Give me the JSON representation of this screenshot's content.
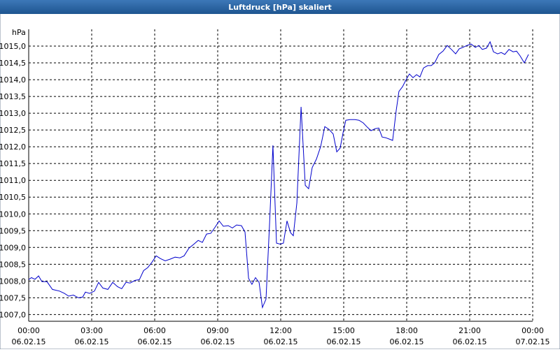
{
  "chart_data": {
    "type": "line",
    "title": "Luftdruck [hPa] skaliert",
    "y_label": "hPa",
    "color": "#0000cc",
    "grid": true,
    "xlim": [
      0,
      24
    ],
    "ylim": [
      1006.8,
      1015.5
    ],
    "xticks": [
      {
        "value": 0,
        "label": "00:00"
      },
      {
        "value": 3,
        "label": "03:00"
      },
      {
        "value": 6,
        "label": "06:00"
      },
      {
        "value": 9,
        "label": "09:00"
      },
      {
        "value": 12,
        "label": "12:00"
      },
      {
        "value": 15,
        "label": "15:00"
      },
      {
        "value": 18,
        "label": "18:00"
      },
      {
        "value": 21,
        "label": "21:00"
      },
      {
        "value": 24,
        "label": "00:00"
      }
    ],
    "xtick_dates": [
      "06.02.15",
      "06.02.15",
      "06.02.15",
      "06.02.15",
      "06.02.15",
      "06.02.15",
      "06.02.15",
      "06.02.15",
      "07.02.15"
    ],
    "yticks": [
      {
        "value": 1007,
        "label": "1007,0"
      },
      {
        "value": 1007.5,
        "label": "1007,5"
      },
      {
        "value": 1008,
        "label": "1008,0"
      },
      {
        "value": 1008.5,
        "label": "1008,5"
      },
      {
        "value": 1009,
        "label": "1009,0"
      },
      {
        "value": 1009.5,
        "label": "1009,5"
      },
      {
        "value": 1010,
        "label": "1010,0"
      },
      {
        "value": 1010.5,
        "label": "1010,5"
      },
      {
        "value": 1011,
        "label": "1011,0"
      },
      {
        "value": 1011.5,
        "label": "1011,5"
      },
      {
        "value": 1012,
        "label": "1012,0"
      },
      {
        "value": 1012.5,
        "label": "1012,5"
      },
      {
        "value": 1013,
        "label": "1013,0"
      },
      {
        "value": 1013.5,
        "label": "1013,5"
      },
      {
        "value": 1014,
        "label": "1014,0"
      },
      {
        "value": 1014.5,
        "label": "1014,5"
      },
      {
        "value": 1015,
        "label": "1015,0"
      }
    ],
    "x": [
      0,
      0.13,
      0.3,
      0.47,
      0.63,
      0.87,
      1.13,
      1.47,
      1.7,
      1.9,
      2.13,
      2.37,
      2.57,
      2.7,
      2.9,
      3.13,
      3.33,
      3.53,
      3.77,
      4.0,
      4.23,
      4.43,
      4.63,
      4.83,
      5.07,
      5.27,
      5.47,
      5.67,
      5.87,
      6.07,
      6.27,
      6.5,
      6.73,
      6.97,
      7.2,
      7.4,
      7.63,
      7.87,
      8.07,
      8.27,
      8.47,
      8.67,
      8.87,
      9.07,
      9.27,
      9.5,
      9.7,
      9.9,
      10.13,
      10.3,
      10.47,
      10.63,
      10.8,
      10.97,
      11.13,
      11.3,
      11.47,
      11.63,
      11.8,
      11.97,
      12.13,
      12.3,
      12.47,
      12.6,
      12.77,
      12.97,
      13.17,
      13.33,
      13.5,
      13.7,
      13.9,
      14.1,
      14.3,
      14.5,
      14.67,
      14.83,
      14.97,
      15.1,
      15.3,
      15.53,
      15.73,
      15.93,
      16.13,
      16.3,
      16.5,
      16.67,
      16.83,
      17.0,
      17.17,
      17.33,
      17.5,
      17.63,
      17.8,
      17.97,
      18.13,
      18.3,
      18.47,
      18.63,
      18.8,
      19.0,
      19.17,
      19.33,
      19.53,
      19.73,
      19.93,
      20.13,
      20.33,
      20.5,
      20.67,
      20.87,
      21.07,
      21.27,
      21.43,
      21.6,
      21.8,
      21.97,
      22.13,
      22.33,
      22.5,
      22.67,
      22.87,
      23.07,
      23.23,
      23.4,
      23.6,
      23.8
    ],
    "values": [
      1008.04,
      1008.1,
      1008.05,
      1008.15,
      1007.98,
      1007.98,
      1007.75,
      1007.7,
      1007.63,
      1007.55,
      1007.58,
      1007.5,
      1007.52,
      1007.67,
      1007.63,
      1007.7,
      1007.96,
      1007.79,
      1007.75,
      1007.96,
      1007.83,
      1007.77,
      1007.96,
      1007.94,
      1008.02,
      1008.04,
      1008.31,
      1008.4,
      1008.56,
      1008.75,
      1008.67,
      1008.6,
      1008.65,
      1008.71,
      1008.69,
      1008.75,
      1008.98,
      1009.1,
      1009.21,
      1009.15,
      1009.4,
      1009.42,
      1009.6,
      1009.79,
      1009.63,
      1009.65,
      1009.58,
      1009.67,
      1009.65,
      1009.46,
      1008.08,
      1007.9,
      1008.1,
      1007.96,
      1007.21,
      1007.46,
      1009.71,
      1012.04,
      1009.13,
      1009.1,
      1009.13,
      1009.79,
      1009.44,
      1009.35,
      1010.33,
      1013.19,
      1010.85,
      1010.75,
      1011.38,
      1011.63,
      1012.0,
      1012.6,
      1012.52,
      1012.38,
      1011.85,
      1011.96,
      1012.42,
      1012.79,
      1012.81,
      1012.81,
      1012.79,
      1012.71,
      1012.58,
      1012.48,
      1012.54,
      1012.56,
      1012.29,
      1012.27,
      1012.23,
      1012.19,
      1013.08,
      1013.65,
      1013.79,
      1014.0,
      1014.17,
      1014.06,
      1014.15,
      1014.08,
      1014.35,
      1014.42,
      1014.42,
      1014.5,
      1014.75,
      1014.85,
      1015.02,
      1014.9,
      1014.77,
      1014.92,
      1014.96,
      1015.02,
      1015.06,
      1014.96,
      1015.02,
      1014.9,
      1014.94,
      1015.13,
      1014.83,
      1014.77,
      1014.81,
      1014.75,
      1014.9,
      1014.83,
      1014.85,
      1014.71,
      1014.5,
      1014.75
    ]
  }
}
